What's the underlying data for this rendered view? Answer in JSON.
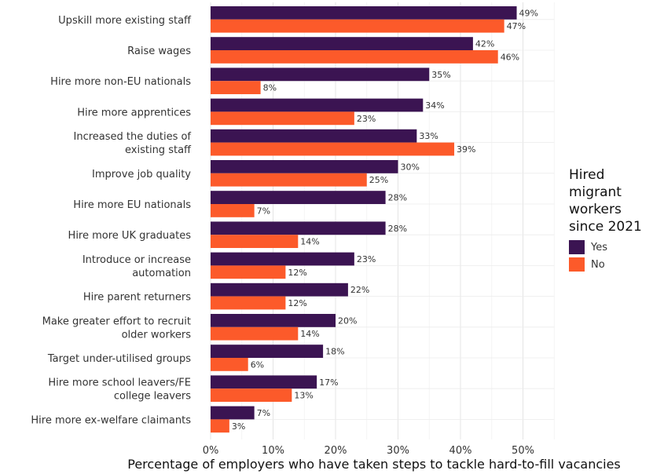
{
  "chart_data": {
    "type": "bar",
    "orientation": "horizontal",
    "categories": [
      [
        "Upskill more existing staff"
      ],
      [
        "Raise wages"
      ],
      [
        "Hire more non-EU nationals"
      ],
      [
        "Hire more apprentices"
      ],
      [
        "Increased the duties of",
        "existing staff"
      ],
      [
        "Improve job quality"
      ],
      [
        "Hire more EU nationals"
      ],
      [
        "Hire more UK graduates"
      ],
      [
        "Introduce or increase",
        "automation"
      ],
      [
        "Hire parent returners"
      ],
      [
        "Make greater effort to recruit",
        "older workers"
      ],
      [
        "Target under-utilised groups"
      ],
      [
        "Hire more school leavers/FE",
        "college leavers"
      ],
      [
        "Hire more ex-welfare claimants"
      ]
    ],
    "series": [
      {
        "name": "Yes",
        "color": "#3b1452",
        "values": [
          49,
          42,
          35,
          34,
          33,
          30,
          28,
          28,
          23,
          22,
          20,
          18,
          17,
          7
        ],
        "labels": [
          "49%",
          "42%",
          "35%",
          "34%",
          "33%",
          "30%",
          "28%",
          "28%",
          "23%",
          "22%",
          "20%",
          "18%",
          "17%",
          "7%"
        ]
      },
      {
        "name": "No",
        "color": "#fc5a2a",
        "values": [
          47,
          46,
          8,
          23,
          39,
          25,
          7,
          14,
          12,
          12,
          14,
          6,
          13,
          3
        ],
        "labels": [
          "47%",
          "46%",
          "8%",
          "23%",
          "39%",
          "25%",
          "7%",
          "14%",
          "12%",
          "12%",
          "14%",
          "6%",
          "13%",
          "3%"
        ]
      }
    ],
    "xlim": [
      0,
      55
    ],
    "xticks": [
      0,
      10,
      20,
      30,
      40,
      50
    ],
    "xtick_labels": [
      "0%",
      "10%",
      "20%",
      "30%",
      "40%",
      "50%"
    ],
    "xlabel": "Percentage of employers who have taken steps to tackle hard-to-fill vacancies",
    "ylabel": "",
    "grid": true,
    "legend": {
      "title": "Hired\nmigrant\nworkers\nsince 2021",
      "placement": "right"
    }
  }
}
